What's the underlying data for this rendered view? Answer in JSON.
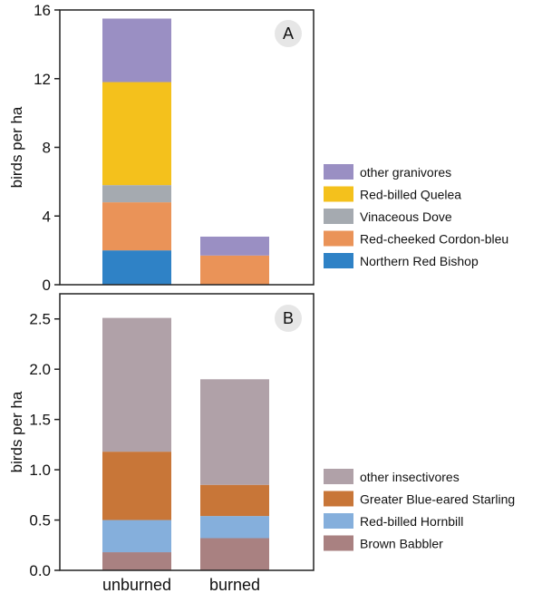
{
  "chart_data": [
    {
      "type": "bar",
      "stacked": true,
      "panel_label": "A",
      "ylabel": "birds per ha",
      "ylim": [
        0,
        16
      ],
      "yticks": [
        0,
        4,
        8,
        12,
        16
      ],
      "ytick_labels": [
        "0",
        "4",
        "8",
        "12",
        "16"
      ],
      "categories": [
        "unburned",
        "burned"
      ],
      "series": [
        {
          "name": "Northern Red Bishop",
          "color": "#2f82c6",
          "values": [
            2.0,
            0.0
          ]
        },
        {
          "name": "Red-cheeked Cordon-bleu",
          "color": "#ea9358",
          "values": [
            2.8,
            1.7
          ]
        },
        {
          "name": "Vinaceous Dove",
          "color": "#a5aab0",
          "values": [
            1.0,
            0.0
          ]
        },
        {
          "name": "Red-billed Quelea",
          "color": "#f4c11c",
          "values": [
            6.0,
            0.0
          ]
        },
        {
          "name": "other granivores",
          "color": "#9a8fc3",
          "values": [
            3.7,
            1.1
          ]
        }
      ],
      "grid": false,
      "legend": "right"
    },
    {
      "type": "bar",
      "stacked": true,
      "panel_label": "B",
      "ylabel": "birds per ha",
      "ylim": [
        0,
        2.75
      ],
      "yticks": [
        0,
        0.5,
        1.0,
        1.5,
        2.0,
        2.5
      ],
      "ytick_labels": [
        "0.0",
        "0.5",
        "1.0",
        "1.5",
        "2.0",
        "2.5"
      ],
      "categories": [
        "unburned",
        "burned"
      ],
      "series": [
        {
          "name": "Brown Babbler",
          "color": "#a98181",
          "values": [
            0.18,
            0.32
          ]
        },
        {
          "name": "Red-billed Hornbill",
          "color": "#85afdc",
          "values": [
            0.32,
            0.22
          ]
        },
        {
          "name": "Greater Blue-eared Starling",
          "color": "#c87638",
          "values": [
            0.68,
            0.31
          ]
        },
        {
          "name": "other insectivores",
          "color": "#b0a1a8",
          "values": [
            1.33,
            1.05
          ]
        }
      ],
      "grid": false,
      "legend": "right"
    }
  ]
}
